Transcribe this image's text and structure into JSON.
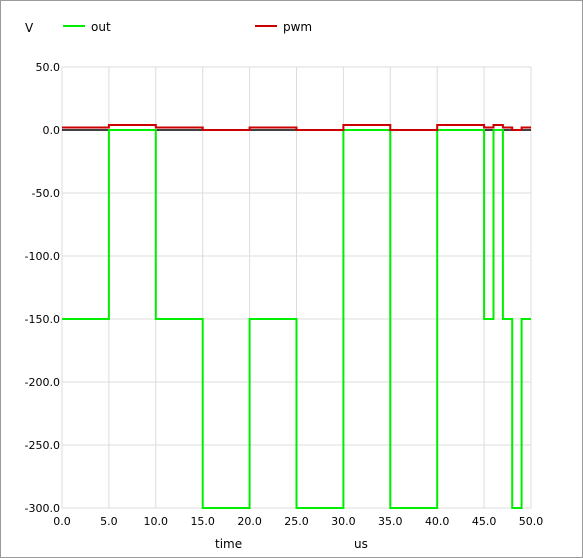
{
  "chart_data": {
    "type": "line",
    "ylabel": "V",
    "xlabel": "time",
    "xunit": "us",
    "xlim": [
      0,
      50
    ],
    "ylim": [
      -300,
      50
    ],
    "xticks": [
      "0.0",
      "5.0",
      "10.0",
      "15.0",
      "20.0",
      "25.0",
      "30.0",
      "35.0",
      "40.0",
      "45.0",
      "50.0"
    ],
    "yticks": [
      "50.0",
      "0.0",
      "-50.0",
      "-100.0",
      "-150.0",
      "-200.0",
      "-250.0",
      "-300.0"
    ],
    "grid": true,
    "legend_position": "top",
    "series": [
      {
        "name": "out",
        "color": "#00ee00",
        "points": [
          [
            0,
            -150
          ],
          [
            5,
            -150
          ],
          [
            5,
            0
          ],
          [
            10,
            0
          ],
          [
            10,
            -150
          ],
          [
            15,
            -150
          ],
          [
            15,
            -300
          ],
          [
            20,
            -300
          ],
          [
            20,
            -150
          ],
          [
            25,
            -150
          ],
          [
            25,
            -300
          ],
          [
            30,
            -300
          ],
          [
            30,
            0
          ],
          [
            35,
            0
          ],
          [
            35,
            -300
          ],
          [
            40,
            -300
          ],
          [
            40,
            0
          ],
          [
            45,
            0
          ],
          [
            45,
            -150
          ],
          [
            46,
            -150
          ],
          [
            46,
            0
          ],
          [
            47,
            0
          ],
          [
            47,
            -150
          ],
          [
            48,
            -150
          ],
          [
            48,
            -300
          ],
          [
            49,
            -300
          ],
          [
            49,
            -150
          ],
          [
            50,
            -150
          ]
        ]
      },
      {
        "name": "pwm",
        "color": "#cc0000",
        "points": [
          [
            0,
            2
          ],
          [
            5,
            2
          ],
          [
            5,
            4
          ],
          [
            10,
            4
          ],
          [
            10,
            2
          ],
          [
            15,
            2
          ],
          [
            15,
            0
          ],
          [
            20,
            0
          ],
          [
            20,
            2
          ],
          [
            25,
            2
          ],
          [
            25,
            0
          ],
          [
            30,
            0
          ],
          [
            30,
            4
          ],
          [
            35,
            4
          ],
          [
            35,
            0
          ],
          [
            40,
            0
          ],
          [
            40,
            4
          ],
          [
            45,
            4
          ],
          [
            45,
            2
          ],
          [
            46,
            2
          ],
          [
            46,
            4
          ],
          [
            47,
            4
          ],
          [
            47,
            2
          ],
          [
            48,
            2
          ],
          [
            48,
            0
          ],
          [
            49,
            0
          ],
          [
            49,
            2
          ],
          [
            50,
            2
          ]
        ]
      }
    ],
    "baseline": {
      "value": 0,
      "color": "#000000"
    }
  }
}
